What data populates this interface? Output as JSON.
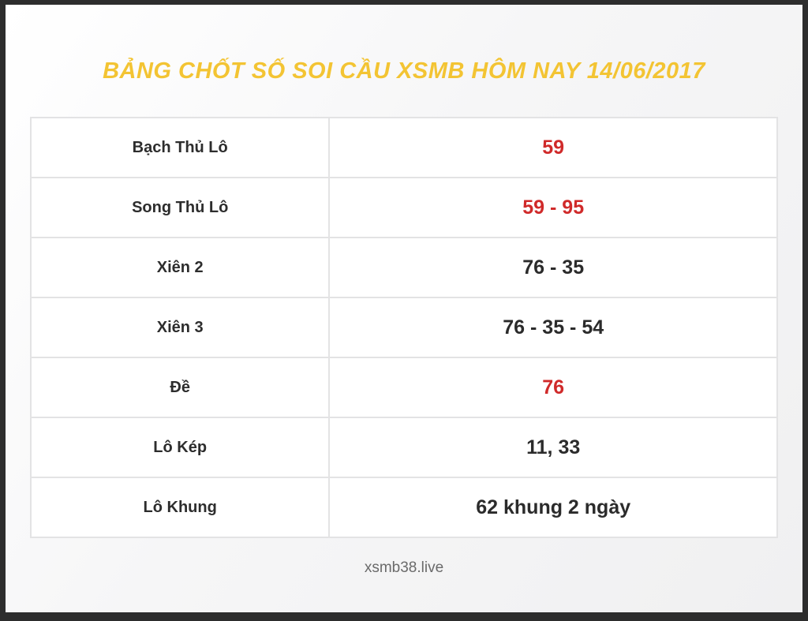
{
  "header": {
    "title": "BẢNG CHỐT SỐ SOI CẦU XSMB HÔM NAY 14/06/2017"
  },
  "colors": {
    "title": "#f3c433",
    "highlight_value": "#d02a2a",
    "normal_value": "#2b2b2b",
    "frame": "#2d2d2d"
  },
  "table": {
    "rows": [
      {
        "label": "Bạch Thủ Lô",
        "value": "59",
        "color": "#d02a2a"
      },
      {
        "label": "Song Thủ Lô",
        "value": "59 - 95",
        "color": "#d02a2a"
      },
      {
        "label": "Xiên 2",
        "value": "76 - 35",
        "color": "#2b2b2b"
      },
      {
        "label": "Xiên 3",
        "value": "76 - 35 - 54",
        "color": "#2b2b2b"
      },
      {
        "label": "Đề",
        "value": "76",
        "color": "#d02a2a"
      },
      {
        "label": "Lô Kép",
        "value": "11, 33",
        "color": "#2b2b2b"
      },
      {
        "label": "Lô Khung",
        "value": "62 khung 2 ngày",
        "color": "#2b2b2b"
      }
    ]
  },
  "footer": {
    "site": "xsmb38.live"
  },
  "chart_data": {
    "type": "table",
    "title": "BẢNG CHỐT SỐ SOI CẦU XSMB HÔM NAY 14/06/2017",
    "rows": [
      [
        "Bạch Thủ Lô",
        "59"
      ],
      [
        "Song Thủ Lô",
        "59 - 95"
      ],
      [
        "Xiên 2",
        "76 - 35"
      ],
      [
        "Xiên 3",
        "76 - 35 - 54"
      ],
      [
        "Đề",
        "76"
      ],
      [
        "Lô Kép",
        "11, 33"
      ],
      [
        "Lô Khung",
        "62 khung 2 ngày"
      ]
    ],
    "highlighted_rows": [
      "Bạch Thủ Lô",
      "Song Thủ Lô",
      "Đề"
    ],
    "footer": "xsmb38.live",
    "layout_hints": {
      "label_column_width_pct": 40,
      "highlight_color": "#d02a2a",
      "title_color": "#f3c433",
      "grid": true
    }
  }
}
